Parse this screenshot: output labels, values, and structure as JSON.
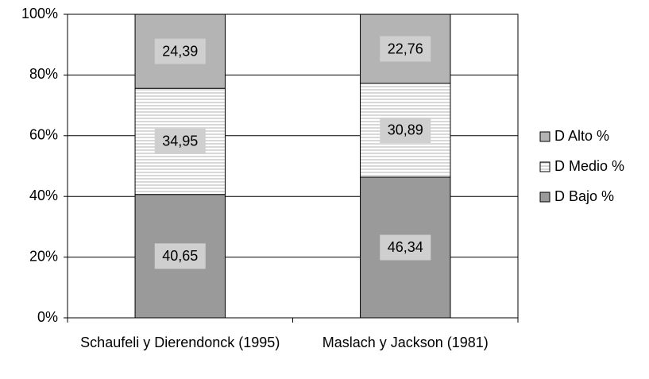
{
  "chart_data": {
    "type": "stacked_bar",
    "categories": [
      "Schaufeli y Dierendonck (1995)",
      "Maslach y Jackson (1981)"
    ],
    "series": [
      {
        "name": "D Bajo %",
        "color": "#9a9a9a",
        "values": [
          40.65,
          46.34
        ],
        "value_labels": [
          "40,65",
          "46,34"
        ]
      },
      {
        "name": "D Medio %",
        "color": "#ffffff",
        "values": [
          34.95,
          30.89
        ],
        "value_labels": [
          "34,95",
          "30,89"
        ]
      },
      {
        "name": "D Alto %",
        "color": "#b4b4b4",
        "values": [
          24.39,
          22.76
        ],
        "value_labels": [
          "24,39",
          "22,76"
        ]
      }
    ],
    "ylim": [
      0,
      100
    ],
    "yticks": [
      {
        "value": 0,
        "label": "0%"
      },
      {
        "value": 20,
        "label": "20%"
      },
      {
        "value": 40,
        "label": "40%"
      },
      {
        "value": 60,
        "label": "60%"
      },
      {
        "value": 80,
        "label": "80%"
      },
      {
        "value": 100,
        "label": "100%"
      }
    ],
    "grid": true,
    "legend": "right"
  }
}
